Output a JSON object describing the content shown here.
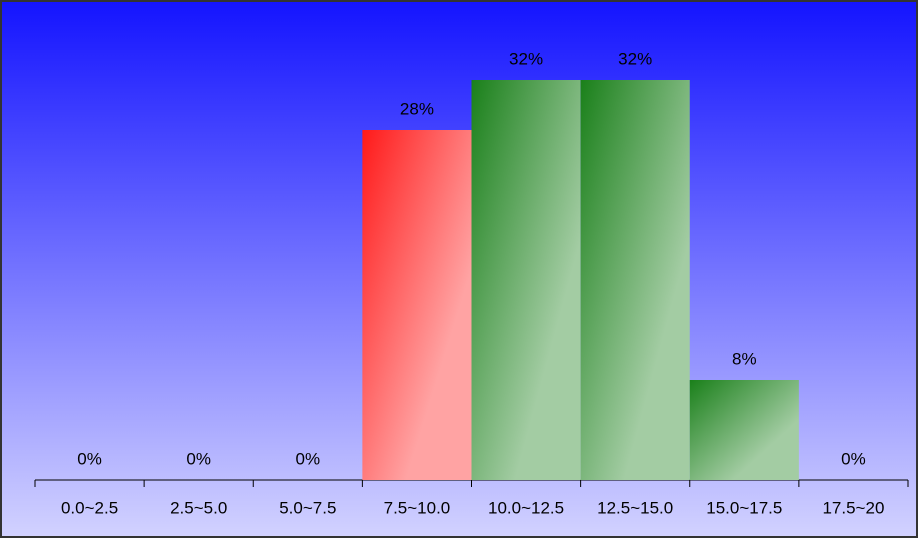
{
  "chart_data": {
    "type": "bar",
    "categories": [
      "0.0~2.5",
      "2.5~5.0",
      "5.0~7.5",
      "7.5~10.0",
      "10.0~12.5",
      "12.5~15.0",
      "15.0~17.5",
      "17.5~20"
    ],
    "values": [
      0,
      0,
      0,
      28,
      32,
      32,
      8,
      0
    ],
    "value_labels": [
      "0%",
      "0%",
      "0%",
      "28%",
      "32%",
      "32%",
      "8%",
      "0%"
    ],
    "colors": [
      "#1a801a",
      "#1a801a",
      "#1a801a",
      "#ff1a1a",
      "#1a801a",
      "#1a801a",
      "#1a801a",
      "#1a801a"
    ]
  }
}
